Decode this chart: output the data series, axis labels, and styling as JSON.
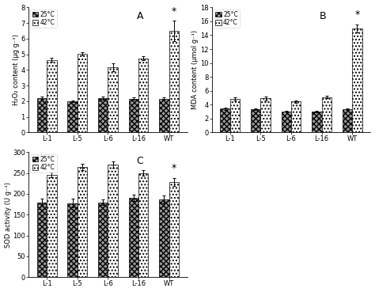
{
  "categories": [
    "L-1",
    "L-5",
    "L-6",
    "L-16",
    "WT"
  ],
  "panel_A": {
    "title": "A",
    "ylabel": "H₂O₂ content (μg g⁻¹)",
    "ylim": [
      0,
      8
    ],
    "yticks": [
      0,
      1,
      2,
      3,
      4,
      5,
      6,
      7,
      8
    ],
    "bars_25": [
      2.2,
      2.0,
      2.2,
      2.15,
      2.15
    ],
    "bars_42": [
      4.65,
      5.05,
      4.15,
      4.75,
      6.5
    ],
    "err_25": [
      0.08,
      0.06,
      0.12,
      0.07,
      0.08
    ],
    "err_42": [
      0.15,
      0.1,
      0.25,
      0.12,
      0.65
    ]
  },
  "panel_B": {
    "title": "B",
    "ylabel": "MDA content (μmol g⁻¹)",
    "ylim": [
      0,
      18
    ],
    "yticks": [
      0,
      2,
      4,
      6,
      8,
      10,
      12,
      14,
      16,
      18
    ],
    "bars_25": [
      3.4,
      3.35,
      3.05,
      3.0,
      3.3
    ],
    "bars_42": [
      4.85,
      4.9,
      4.45,
      5.1,
      15.0
    ],
    "err_25": [
      0.12,
      0.1,
      0.08,
      0.08,
      0.1
    ],
    "err_42": [
      0.2,
      0.25,
      0.2,
      0.15,
      0.55
    ]
  },
  "panel_C": {
    "title": "C",
    "ylabel": "SOD activity (U g⁻¹)",
    "ylim": [
      0,
      300
    ],
    "yticks": [
      0,
      50,
      100,
      150,
      200,
      250,
      300
    ],
    "bars_25": [
      180,
      178,
      180,
      190,
      187
    ],
    "bars_42": [
      245,
      265,
      270,
      250,
      228
    ],
    "err_25": [
      8,
      10,
      7,
      8,
      10
    ],
    "err_42": [
      6,
      8,
      8,
      7,
      10
    ]
  },
  "color_25": "#aaaaaa",
  "color_42": "#f5f5f5",
  "hatch_25": "///",
  "hatch_42": "...",
  "bar_width": 0.32,
  "bar_edgecolor": "black",
  "fontsize": 7,
  "tick_fontsize": 6,
  "label_fontsize": 6
}
